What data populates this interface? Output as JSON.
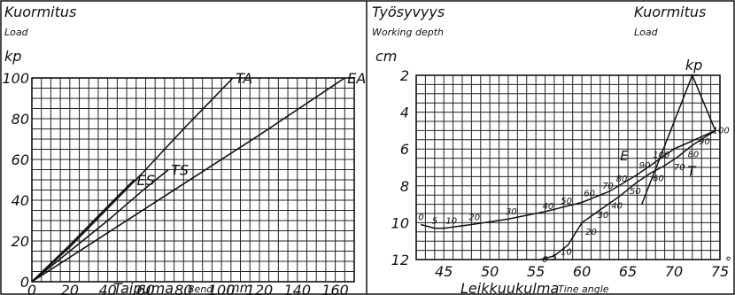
{
  "chart_data": [
    {
      "type": "line",
      "title": "Kuormitus",
      "subtitle": "Load",
      "y_unit": "kp",
      "xlabel": "Taipuma",
      "xlabel_en": "Bend",
      "x_unit": "mm",
      "xlim": [
        0,
        170
      ],
      "ylim": [
        0,
        100
      ],
      "xticks": [
        0,
        20,
        40,
        60,
        80,
        100,
        120,
        140,
        160
      ],
      "yticks": [
        0,
        20,
        40,
        60,
        80,
        100
      ],
      "grid": true,
      "series": [
        {
          "name": "TA",
          "x": [
            0,
            20,
            40,
            60,
            80,
            106
          ],
          "y": [
            0,
            17,
            36,
            55,
            75,
            100
          ]
        },
        {
          "name": "EA",
          "x": [
            0,
            40,
            80,
            120,
            165
          ],
          "y": [
            0,
            24,
            48,
            72,
            100
          ]
        },
        {
          "name": "ES",
          "x": [
            0,
            20,
            40,
            54
          ],
          "y": [
            0,
            18,
            37,
            50
          ]
        },
        {
          "name": "TS",
          "x": [
            0,
            20,
            40,
            60,
            72
          ],
          "y": [
            0,
            15,
            30,
            46,
            55
          ]
        }
      ]
    },
    {
      "type": "line",
      "title": "Työsyvyys",
      "subtitle": "Working depth",
      "title_right": "Kuormitus",
      "subtitle_right": "Load",
      "y_unit": "cm",
      "right_unit": "kp",
      "xlabel": "Leikkuukulma",
      "xlabel_en": "Tine angle",
      "x_unit": "°",
      "xlim": [
        42,
        75
      ],
      "ylim": [
        12,
        2
      ],
      "xticks": [
        45,
        50,
        55,
        60,
        65,
        70,
        75
      ],
      "yticks": [
        2,
        4,
        6,
        8,
        10,
        12
      ],
      "grid": true,
      "series": [
        {
          "name": "E",
          "x": [
            42.5,
            44,
            45,
            48,
            52,
            56,
            60,
            63,
            66,
            68,
            70,
            74.5
          ],
          "y": [
            10.1,
            10.3,
            10.3,
            10.1,
            9.8,
            9.4,
            8.9,
            8.3,
            7.4,
            6.7,
            6.0,
            5.0
          ]
        },
        {
          "name": "T",
          "x": [
            55.5,
            57,
            58.5,
            60,
            62,
            64,
            66,
            67.5,
            69,
            70.5,
            72,
            74.5
          ],
          "y": [
            12.0,
            11.8,
            11.2,
            10.0,
            9.3,
            8.6,
            7.8,
            7.3,
            6.9,
            6.4,
            5.8,
            5.0
          ]
        },
        {
          "name": "kp",
          "x": [
            66.5,
            72,
            74.5
          ],
          "y": [
            9.0,
            2.0,
            5.0
          ]
        }
      ],
      "load_labels_E": [
        {
          "t": "0",
          "x": 42.5,
          "y": 10.1
        },
        {
          "t": "5",
          "x": 44,
          "y": 10.3
        },
        {
          "t": "10",
          "x": 45.5,
          "y": 10.3
        },
        {
          "t": "20",
          "x": 48,
          "y": 10.1
        },
        {
          "t": "30",
          "x": 52,
          "y": 9.8
        },
        {
          "t": "40",
          "x": 56,
          "y": 9.5
        },
        {
          "t": "50",
          "x": 58,
          "y": 9.2
        },
        {
          "t": "60",
          "x": 60.5,
          "y": 8.8
        },
        {
          "t": "70",
          "x": 62.5,
          "y": 8.4
        },
        {
          "t": "80",
          "x": 64,
          "y": 8.0
        },
        {
          "t": "90",
          "x": 66.5,
          "y": 7.3
        },
        {
          "t": "100",
          "x": 68,
          "y": 6.7
        }
      ],
      "load_labels_T": [
        {
          "t": "0",
          "x": 55.5,
          "y": 12.0
        },
        {
          "t": "5",
          "x": 56.5,
          "y": 11.9
        },
        {
          "t": "10",
          "x": 57.5,
          "y": 11.6
        },
        {
          "t": "20",
          "x": 60.2,
          "y": 10.5
        },
        {
          "t": "30",
          "x": 61.5,
          "y": 9.6
        },
        {
          "t": "40",
          "x": 63,
          "y": 9.1
        },
        {
          "t": "50",
          "x": 65,
          "y": 8.3
        },
        {
          "t": "60",
          "x": 67.5,
          "y": 7.6
        },
        {
          "t": "70",
          "x": 69.8,
          "y": 7.0
        },
        {
          "t": "80",
          "x": 71.3,
          "y": 6.3
        },
        {
          "t": "90",
          "x": 72.5,
          "y": 5.6
        },
        {
          "t": "100",
          "x": 74,
          "y": 5.0
        }
      ]
    }
  ]
}
